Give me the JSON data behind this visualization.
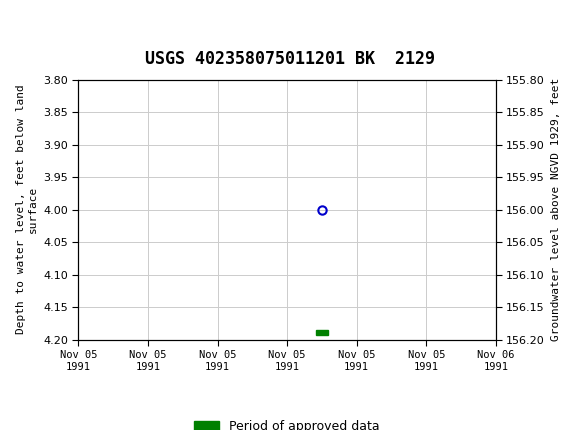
{
  "title": "USGS 402358075011201 BK  2129",
  "header_color": "#1a6b3c",
  "left_ylabel": "Depth to water level, feet below land\nsurface",
  "right_ylabel": "Groundwater level above NGVD 1929, feet",
  "ylim_left": [
    3.8,
    4.2
  ],
  "ylim_right": [
    155.8,
    156.2
  ],
  "yticks_left": [
    3.8,
    3.85,
    3.9,
    3.95,
    4.0,
    4.05,
    4.1,
    4.15,
    4.2
  ],
  "yticks_right": [
    155.8,
    155.85,
    155.9,
    155.95,
    156.0,
    156.05,
    156.1,
    156.15,
    156.2
  ],
  "xtick_labels": [
    "Nov 05\n1991",
    "Nov 05\n1991",
    "Nov 05\n1991",
    "Nov 05\n1991",
    "Nov 05\n1991",
    "Nov 05\n1991",
    "Nov 06\n1991"
  ],
  "data_point_x": 3.5,
  "data_point_y": 4.0,
  "data_point_color": "#0000cc",
  "green_bar_x": 3.5,
  "green_bar_y": 4.185,
  "green_bar_color": "#008000",
  "legend_label": "Period of approved data",
  "grid_color": "#cccccc",
  "background_color": "#ffffff",
  "xlim": [
    0,
    6
  ]
}
